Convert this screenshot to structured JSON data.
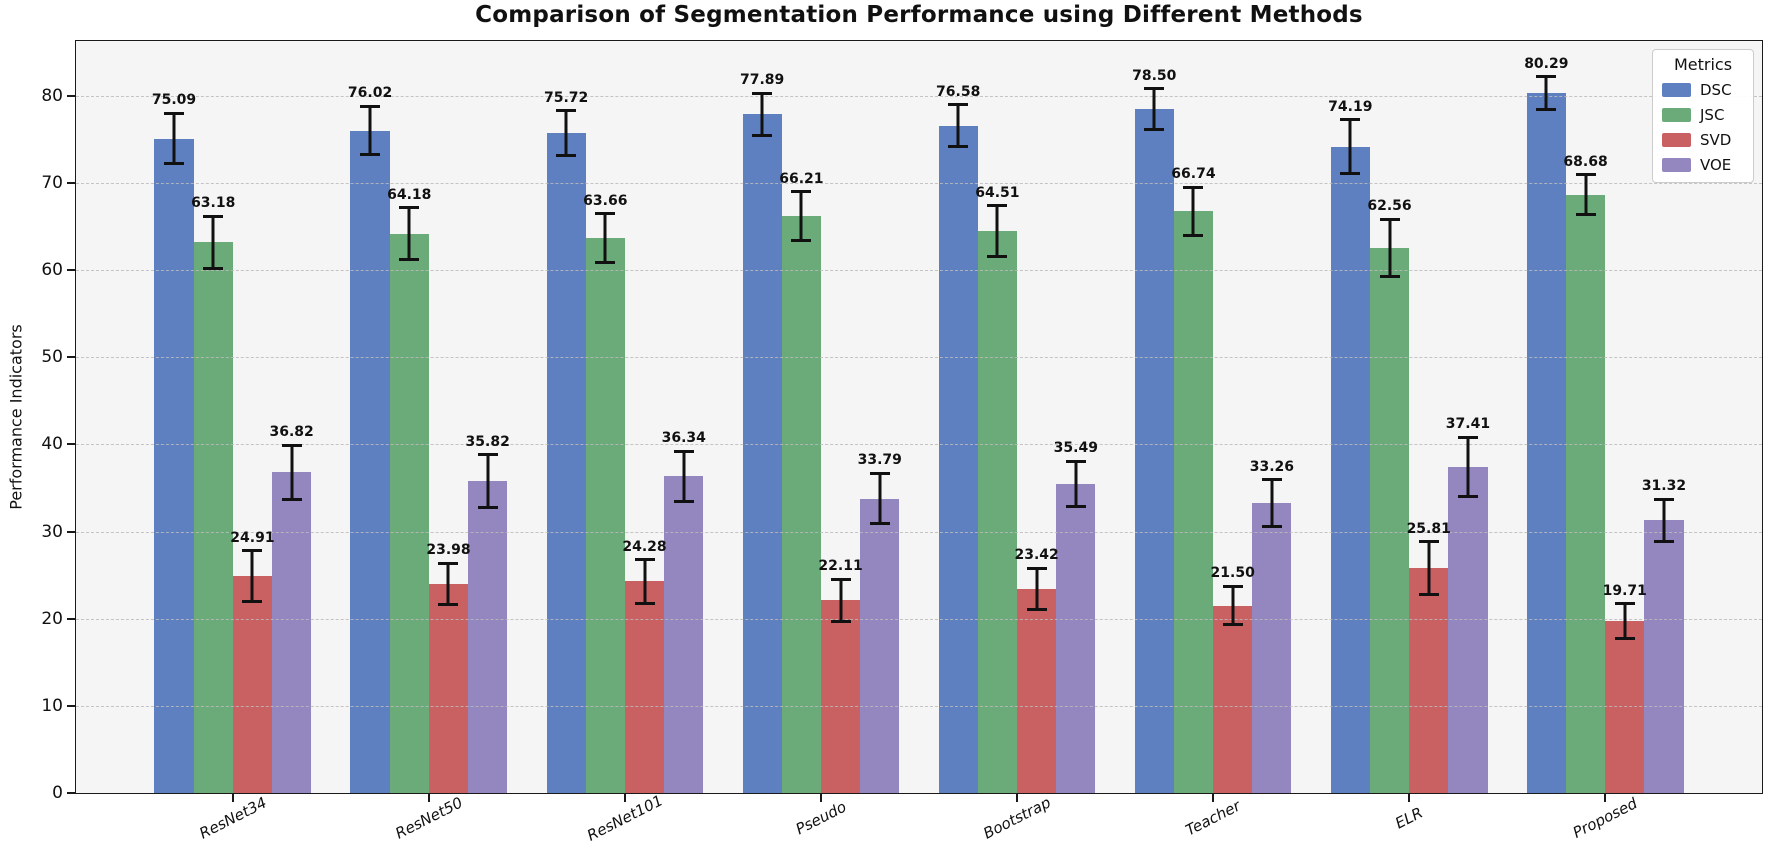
{
  "legend": {
    "title": "Metrics"
  },
  "chart_data": {
    "type": "bar",
    "title": "Comparison of Segmentation Performance using Different Methods",
    "xlabel": "",
    "ylabel": "Performance Indicators",
    "categories": [
      "ResNet34",
      "ResNet50",
      "ResNet101",
      "Pseudo",
      "Bootstrap",
      "Teacher",
      "ELR",
      "Proposed"
    ],
    "series": [
      {
        "name": "DSC",
        "color": "#5e80c1",
        "values": [
          75.09,
          76.02,
          75.72,
          77.89,
          76.58,
          78.5,
          74.19,
          80.29
        ],
        "errors": [
          2.9,
          2.8,
          2.6,
          2.4,
          2.4,
          2.3,
          3.1,
          1.9
        ]
      },
      {
        "name": "JSC",
        "color": "#6bab79",
        "values": [
          63.18,
          64.18,
          63.66,
          66.21,
          64.51,
          66.74,
          62.56,
          68.68
        ],
        "errors": [
          3.0,
          3.0,
          2.8,
          2.8,
          2.9,
          2.8,
          3.3,
          2.3
        ]
      },
      {
        "name": "SVD",
        "color": "#c96062",
        "values": [
          24.91,
          23.98,
          24.28,
          22.11,
          23.42,
          21.5,
          25.81,
          19.71
        ],
        "errors": [
          2.9,
          2.4,
          2.5,
          2.4,
          2.4,
          2.2,
          3.0,
          2.0
        ]
      },
      {
        "name": "VOE",
        "color": "#9486bf",
        "values": [
          36.82,
          35.82,
          36.34,
          33.79,
          35.49,
          33.26,
          37.41,
          31.32
        ],
        "errors": [
          3.1,
          3.0,
          2.9,
          2.9,
          2.6,
          2.7,
          3.4,
          2.4
        ]
      }
    ],
    "yticks": [
      0,
      10,
      20,
      30,
      40,
      50,
      60,
      70,
      80
    ],
    "ylim": [
      0,
      86.3
    ],
    "xlim": [
      -0.8,
      7.8
    ],
    "bar_width_units": 0.2,
    "grid": "horizontal-dashed",
    "legend_position": "upper-right",
    "error_bars": true,
    "value_labels": "above-error-bars",
    "value_label_decimals": 2
  }
}
